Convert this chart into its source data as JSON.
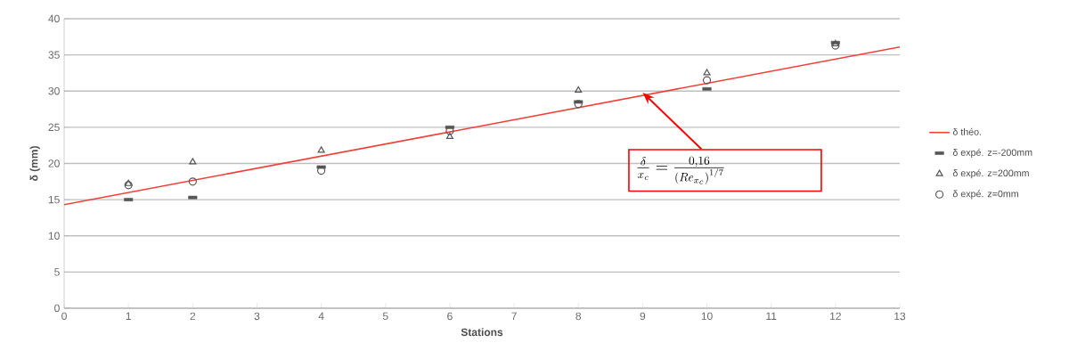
{
  "chart_data": {
    "type": "scatter",
    "xlabel": "Stations",
    "ylabel": "δ (mm)",
    "xlim": [
      0,
      13
    ],
    "xticks": [
      0,
      1,
      2,
      3,
      4,
      5,
      6,
      7,
      8,
      9,
      10,
      11,
      12,
      13
    ],
    "ylim": [
      0,
      40
    ],
    "yticks": [
      0,
      5,
      10,
      15,
      20,
      25,
      30,
      35,
      40
    ],
    "grid": "y",
    "legend": "right",
    "series": [
      {
        "name": "δ théo.",
        "type": "line",
        "color": "#f0403a",
        "marker": "none",
        "x": [
          0,
          13
        ],
        "values": [
          14.3,
          36.1
        ]
      },
      {
        "name": "δ expé. z=-200mm",
        "color": "#555555",
        "x": [
          1,
          2,
          4,
          6,
          8,
          10,
          12
        ],
        "values": [
          15.0,
          15.3,
          19.5,
          25.0,
          28.5,
          30.3,
          36.7
        ]
      },
      {
        "name": "δ expé. z=200mm",
        "color": "#555555",
        "marker": "triangle",
        "x": [
          1,
          2,
          4,
          6,
          8,
          10,
          12
        ],
        "values": [
          17.2,
          20.2,
          21.8,
          23.7,
          30.1,
          32.5,
          36.5
        ]
      },
      {
        "name": "δ expé. z=0mm",
        "color": "#555555",
        "marker": "circle",
        "x": [
          1,
          2,
          4,
          6,
          8,
          10,
          12
        ],
        "values": [
          17.0,
          17.5,
          19.0,
          24.5,
          28.2,
          31.5,
          36.3
        ]
      }
    ],
    "annotations": [
      {
        "text": "\\frac{\\delta}{x_c}=\\frac{0,16}{\\left(Re_{x_c}\\right)^{1/7}}",
        "x": 9,
        "y": 29.8
      }
    ]
  }
}
